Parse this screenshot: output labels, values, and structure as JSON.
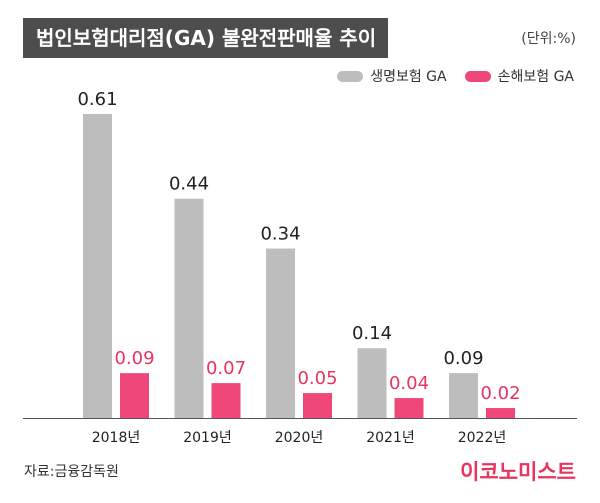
{
  "title": "법인보험대리점(GA) 불완전판매율 추이",
  "unit": "(단위:%)",
  "source": "자료:금융감독원",
  "logo": "이코노미스트",
  "colors": {
    "life": "#bdbdbd",
    "nonlife": "#f0477a",
    "nonlife_label": "#e8345f",
    "title_bg": "#4d4d4d"
  },
  "chart_data": {
    "type": "bar",
    "categories": [
      "2018년",
      "2019년",
      "2020년",
      "2021년",
      "2022년"
    ],
    "series": [
      {
        "name": "생명보험 GA",
        "values": [
          0.61,
          0.44,
          0.34,
          0.14,
          0.09
        ]
      },
      {
        "name": "손해보험 GA",
        "values": [
          0.09,
          0.07,
          0.05,
          0.04,
          0.02
        ]
      }
    ],
    "value_labels": [
      [
        "0.61",
        "0.44",
        "0.34",
        "0.14",
        "0.09"
      ],
      [
        "0.09",
        "0.07",
        "0.05",
        "0.04",
        "0.02"
      ]
    ],
    "ylim": [
      0,
      0.61
    ],
    "grid": false,
    "legend": "top-right"
  }
}
